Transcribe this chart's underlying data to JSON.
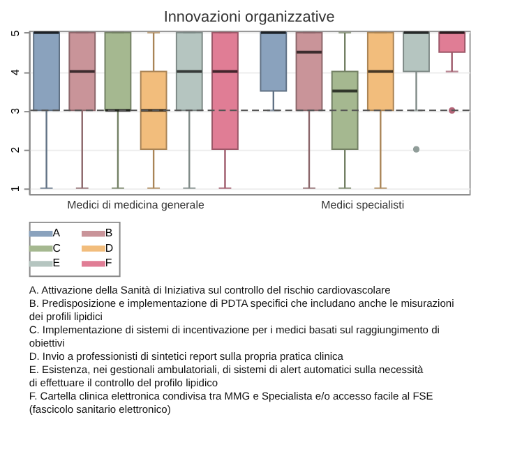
{
  "chart_data": {
    "type": "box",
    "title": "Innovazioni organizzative",
    "categories": [
      "Medici di medicina generale",
      "Medici specialisti"
    ],
    "ylim": [
      0.85,
      5.05
    ],
    "yticks": [
      1,
      2,
      3,
      4,
      5
    ],
    "grid": "y",
    "legend": "bottom",
    "ref_lines": [
      {
        "axis": "y",
        "value": 3,
        "color": "#555555",
        "line_style": "dashed"
      }
    ],
    "series": [
      {
        "name": "A",
        "color": "#8aa2bd",
        "boxes": [
          {
            "low": 1,
            "q1": 3,
            "median": 5,
            "q3": 5,
            "high": 5
          },
          {
            "low": 3,
            "q1": 3.5,
            "median": 5,
            "q3": 5,
            "high": 5
          }
        ]
      },
      {
        "name": "B",
        "color": "#c99499",
        "boxes": [
          {
            "low": 1,
            "q1": 3,
            "median": 4,
            "q3": 5,
            "high": 5
          },
          {
            "low": 1,
            "q1": 3,
            "median": 4.5,
            "q3": 5,
            "high": 5
          }
        ]
      },
      {
        "name": "C",
        "color": "#a5b890",
        "boxes": [
          {
            "low": 1,
            "q1": 3,
            "median": 3,
            "q3": 5,
            "high": 5
          },
          {
            "low": 1,
            "q1": 2,
            "median": 3.5,
            "q3": 4,
            "high": 5
          }
        ]
      },
      {
        "name": "D",
        "color": "#f2bd7c",
        "boxes": [
          {
            "low": 1,
            "q1": 2,
            "median": 3,
            "q3": 4,
            "high": 5
          },
          {
            "low": 1,
            "q1": 3,
            "median": 4,
            "q3": 5,
            "high": 5
          }
        ]
      },
      {
        "name": "E",
        "color": "#b5c5c0",
        "boxes": [
          {
            "low": 1,
            "q1": 3,
            "median": 4,
            "q3": 5,
            "high": 5
          },
          {
            "low": 3,
            "q1": 4,
            "median": 5,
            "q3": 5,
            "high": 5,
            "outliers": [
              2
            ]
          }
        ]
      },
      {
        "name": "F",
        "color": "#e07d95",
        "boxes": [
          {
            "low": 1,
            "q1": 2,
            "median": 4,
            "q3": 5,
            "high": 5
          },
          {
            "low": 4,
            "q1": 4.5,
            "median": 5,
            "q3": 5,
            "high": 5,
            "outliers": [
              3
            ]
          }
        ]
      }
    ],
    "annotations": [
      "A. Attivazione della Sanità di Iniziativa sul controllo del rischio cardiovascolare",
      "B. Predisposizione e implementazione di PDTA specifici che includano anche le misurazioni dei profili lipidici",
      "C. Implementazione di sistemi di incentivazione per i medici basati sul raggiungimento di obiettivi",
      "D. Invio a professionisti di sintetici report sulla propria pratica clinica",
      "E. Esistenza, nei gestionali ambulatoriali, di sistemi di alert automatici sulla necessità di effettuare il controllo del profilo lipidico",
      "F. Cartella clinica elettronica condivisa tra MMG e Specialista e/o accesso facile al FSE (fascicolo sanitario elettronico)"
    ]
  }
}
